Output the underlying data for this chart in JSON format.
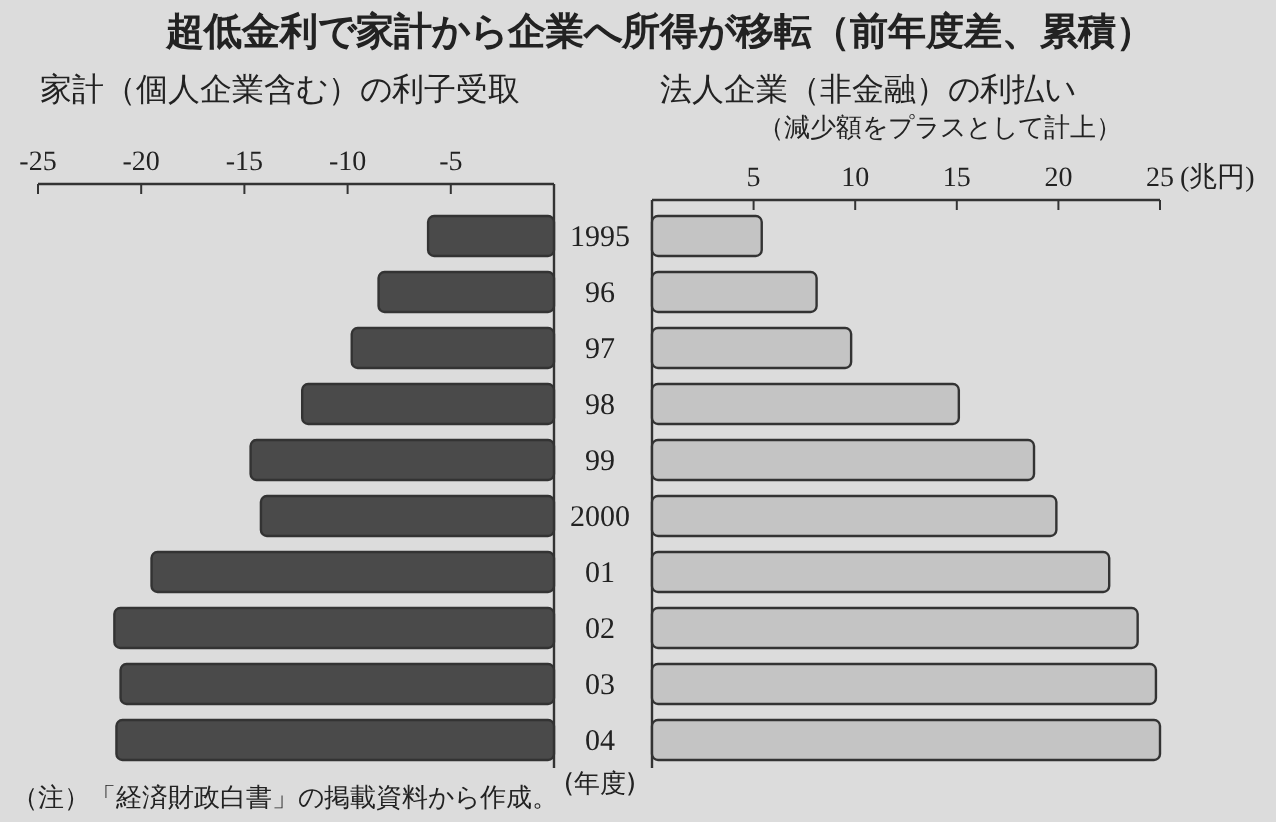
{
  "chart_data": [
    {
      "type": "bar",
      "orientation": "horizontal",
      "title": "超低金利で家計から企業へ所得が移転（前年度差、累積）",
      "subtitle": "家計（個人企業含む）の利子受取",
      "ylabel": "(年度)",
      "categories": [
        "1995",
        "96",
        "97",
        "98",
        "99",
        "2000",
        "01",
        "02",
        "03",
        "04"
      ],
      "values": [
        -6.1,
        -8.5,
        -9.8,
        -12.2,
        -14.7,
        -14.2,
        -19.5,
        -21.3,
        -21.0,
        -21.2
      ],
      "color": "#4a4a4a",
      "xlim": [
        -25,
        0
      ],
      "xticks": [
        -25,
        -20,
        -15,
        -10,
        -5
      ],
      "annotations": [
        "（注）「経済財政白書」の掲載資料から作成。"
      ]
    },
    {
      "type": "bar",
      "orientation": "horizontal",
      "title": "法人企業（非金融）の利払い",
      "subtitle": "（減少額をプラスとして計上）",
      "categories": [
        "1995",
        "96",
        "97",
        "98",
        "99",
        "2000",
        "01",
        "02",
        "03",
        "04"
      ],
      "values": [
        5.4,
        8.1,
        9.8,
        15.1,
        18.8,
        19.9,
        22.5,
        23.9,
        24.8,
        25.0
      ],
      "color": "#c4c4c4",
      "xlim": [
        0,
        25
      ],
      "xticks": [
        5,
        10,
        15,
        20,
        25
      ],
      "xlabel": "(兆円)",
      "tick_labels": "x"
    }
  ]
}
